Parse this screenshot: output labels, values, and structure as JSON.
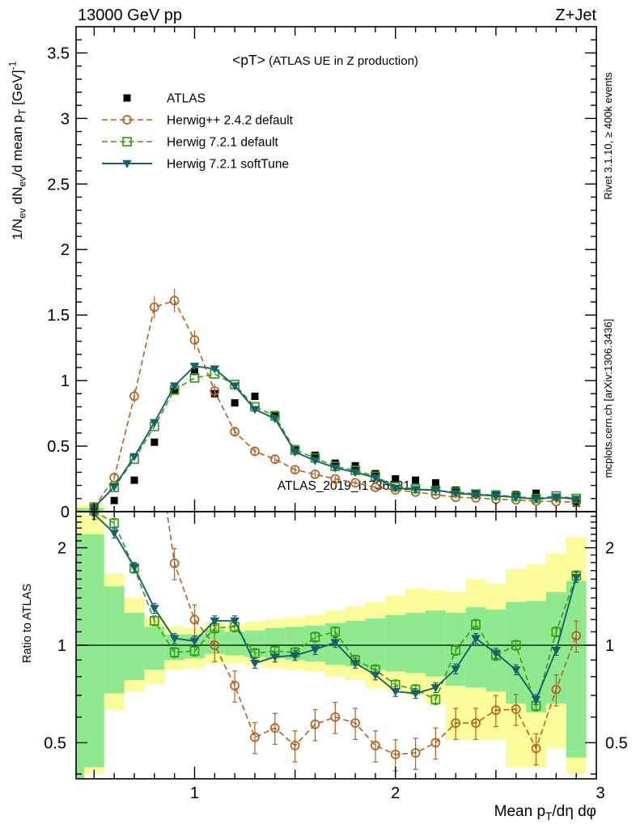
{
  "header": {
    "left": "13000 GeV pp",
    "right": "Z+Jet"
  },
  "side_notes": {
    "top_rotated": "Rivet 3.1.10, ≥ 400k events",
    "bottom_rotated": "mcplots.cern.ch [arXiv:1306.3436]",
    "color": "#8f8f8f"
  },
  "watermark": {
    "text": "ATLAS_2019_I1736531",
    "color": "#bcbcbc"
  },
  "legend": {
    "items": [
      {
        "label": "ATLAS",
        "marker": "filled-square",
        "color": "#000000",
        "line": "none"
      },
      {
        "label": "Herwig++ 2.4.2 default",
        "marker": "open-circle",
        "color": "#b4601d",
        "line": "dashed"
      },
      {
        "label": "Herwig 7.2.1 default",
        "marker": "open-square",
        "color": "#33a115",
        "line": "dashed"
      },
      {
        "label": "Herwig 7.2.1 softTune",
        "marker": "filled-triangle-down",
        "color": "#17606e",
        "line": "solid"
      }
    ]
  },
  "chart_data": {
    "type": "line",
    "title_main": "<pT>",
    "title_sub": " (ATLAS UE in Z production)",
    "xlabel_rich": [
      {
        "t": "Mean p"
      },
      {
        "t": "T",
        "s": "sub"
      },
      {
        "t": "/dη dφ"
      }
    ],
    "ylabel_top_rich": [
      {
        "t": "1/N"
      },
      {
        "t": "ev",
        "s": "sub"
      },
      {
        "t": " dN"
      },
      {
        "t": "ev",
        "s": "sub"
      },
      {
        "t": "/d mean p"
      },
      {
        "t": "T",
        "s": "sub"
      },
      {
        "t": " [GeV]"
      },
      {
        "t": "-1",
        "s": "sup"
      }
    ],
    "ylabel_bottom": "Ratio to ATLAS",
    "x_range": [
      0.41,
      3.0
    ],
    "y_top_range": [
      0,
      3.7
    ],
    "ratio_range": [
      0.387,
      2.58
    ],
    "ratio_scale": "log",
    "x_tick_labels": [
      1,
      2,
      3
    ],
    "y_top_tick_labels": [
      0,
      0.5,
      1,
      1.5,
      2,
      2.5,
      3,
      3.5
    ],
    "ratio_tick_labels": [
      0.5,
      1,
      2
    ],
    "x": [
      0.5,
      0.6,
      0.7,
      0.8,
      0.9,
      1.0,
      1.1,
      1.2,
      1.3,
      1.4,
      1.5,
      1.6,
      1.7,
      1.8,
      1.9,
      2.0,
      2.1,
      2.2,
      2.3,
      2.4,
      2.5,
      2.6,
      2.7,
      2.8,
      2.9
    ],
    "series": [
      {
        "name": "ATLAS",
        "color": "#000000",
        "marker": "filled-square",
        "line": "none",
        "err_frac": 0,
        "values": [
          0.02,
          0.085,
          0.24,
          0.53,
          0.92,
          1.07,
          0.9,
          0.83,
          0.88,
          0.74,
          0.48,
          0.43,
          0.37,
          0.35,
          0.29,
          0.25,
          0.24,
          0.22,
          0.165,
          0.14,
          0.135,
          0.13,
          0.14,
          0.11,
          0.065
        ],
        "ratio": null
      },
      {
        "name": "Herwig++ 2.4.2 default",
        "color": "#b4601d",
        "marker": "open-circle",
        "line": "dashed",
        "err_frac": 0.11,
        "values": [
          0.03,
          0.26,
          0.88,
          1.56,
          1.61,
          1.31,
          0.92,
          0.61,
          0.46,
          0.4,
          0.32,
          0.285,
          0.25,
          0.22,
          0.185,
          0.165,
          0.15,
          0.13,
          0.11,
          0.105,
          0.095,
          0.09,
          0.08,
          0.077,
          0.073
        ],
        "ratio": [
          null,
          null,
          null,
          null,
          1.79,
          1.2,
          1.0,
          0.75,
          0.52,
          0.555,
          0.49,
          0.57,
          0.6,
          0.575,
          0.49,
          0.46,
          0.465,
          0.5,
          0.575,
          0.575,
          0.63,
          0.635,
          0.48,
          0.73,
          1.07
        ]
      },
      {
        "name": "Herwig 7.2.1 default",
        "color": "#33a115",
        "marker": "open-square",
        "line": "dashed",
        "err_frac": 0.035,
        "values": [
          0.035,
          0.185,
          0.4,
          0.65,
          0.93,
          1.02,
          1.05,
          0.97,
          0.8,
          0.73,
          0.47,
          0.41,
          0.345,
          0.315,
          0.27,
          0.19,
          0.175,
          0.16,
          0.15,
          0.135,
          0.125,
          0.115,
          0.1,
          0.12,
          0.1
        ],
        "ratio": [
          2.6,
          2.38,
          1.73,
          1.19,
          0.95,
          0.96,
          1.13,
          1.14,
          0.944,
          0.96,
          0.95,
          1.06,
          1.1,
          0.9,
          0.84,
          0.755,
          0.73,
          0.68,
          0.965,
          1.16,
          0.93,
          1.0,
          0.65,
          1.1,
          1.64
        ]
      },
      {
        "name": "Herwig 7.2.1 softTune",
        "color": "#17606e",
        "marker": "filled-triangle-down",
        "line": "solid",
        "err_frac": 0.035,
        "values": [
          0.03,
          0.19,
          0.42,
          0.68,
          0.96,
          1.11,
          1.09,
          0.96,
          0.78,
          0.71,
          0.455,
          0.39,
          0.335,
          0.3,
          0.26,
          0.18,
          0.17,
          0.165,
          0.14,
          0.13,
          0.12,
          0.11,
          0.095,
          0.11,
          0.095
        ],
        "ratio": [
          2.54,
          2.22,
          1.74,
          1.3,
          1.05,
          1.03,
          1.19,
          1.19,
          0.88,
          0.92,
          0.93,
          0.97,
          1.02,
          0.88,
          0.81,
          0.72,
          0.71,
          0.74,
          0.845,
          1.05,
          0.945,
          0.84,
          0.68,
          0.965,
          1.62
        ]
      }
    ],
    "uncertainty_bands": {
      "colors": {
        "outer": "#fcfc9a",
        "inner": "#8fe98f"
      },
      "x_edges": [
        0.41,
        0.45,
        0.55,
        0.65,
        0.75,
        0.85,
        0.95,
        1.05,
        1.15,
        1.25,
        1.35,
        1.45,
        1.55,
        1.65,
        1.75,
        1.85,
        1.95,
        2.05,
        2.15,
        2.25,
        2.35,
        2.45,
        2.55,
        2.65,
        2.75,
        2.85,
        2.95
      ],
      "outer": [
        [
          0.38,
          2.58
        ],
        [
          0.4,
          2.52
        ],
        [
          0.63,
          1.66
        ],
        [
          0.72,
          1.4
        ],
        [
          0.76,
          1.22
        ],
        [
          0.84,
          1.14
        ],
        [
          0.85,
          1.13
        ],
        [
          0.88,
          1.18
        ],
        [
          0.88,
          1.16
        ],
        [
          0.87,
          1.18
        ],
        [
          0.85,
          1.2
        ],
        [
          0.84,
          1.22
        ],
        [
          0.83,
          1.24
        ],
        [
          0.8,
          1.28
        ],
        [
          0.78,
          1.32
        ],
        [
          0.74,
          1.36
        ],
        [
          0.72,
          1.42
        ],
        [
          0.7,
          1.5
        ],
        [
          0.66,
          1.48
        ],
        [
          0.51,
          1.46
        ],
        [
          0.51,
          1.6
        ],
        [
          0.51,
          1.55
        ],
        [
          0.42,
          1.72
        ],
        [
          0.42,
          1.78
        ],
        [
          0.48,
          1.92
        ],
        [
          0.4,
          2.15
        ]
      ],
      "inner": [
        [
          0.38,
          2.2
        ],
        [
          0.42,
          2.2
        ],
        [
          0.71,
          1.52
        ],
        [
          0.78,
          1.26
        ],
        [
          0.84,
          1.14
        ],
        [
          0.9,
          1.08
        ],
        [
          0.91,
          1.08
        ],
        [
          0.94,
          1.12
        ],
        [
          0.93,
          1.1
        ],
        [
          0.92,
          1.11
        ],
        [
          0.91,
          1.13
        ],
        [
          0.9,
          1.14
        ],
        [
          0.89,
          1.15
        ],
        [
          0.87,
          1.17
        ],
        [
          0.86,
          1.19
        ],
        [
          0.84,
          1.21
        ],
        [
          0.83,
          1.24
        ],
        [
          0.82,
          1.26
        ],
        [
          0.8,
          1.28
        ],
        [
          0.75,
          1.26
        ],
        [
          0.74,
          1.31
        ],
        [
          0.72,
          1.29
        ],
        [
          0.66,
          1.36
        ],
        [
          0.62,
          1.37
        ],
        [
          0.66,
          1.46
        ],
        [
          0.45,
          1.58
        ]
      ]
    },
    "main_panel_band": {
      "x": [
        0.41,
        0.55
      ],
      "outer": [
        0,
        0.05
      ],
      "inner": [
        0,
        0.028
      ]
    }
  }
}
